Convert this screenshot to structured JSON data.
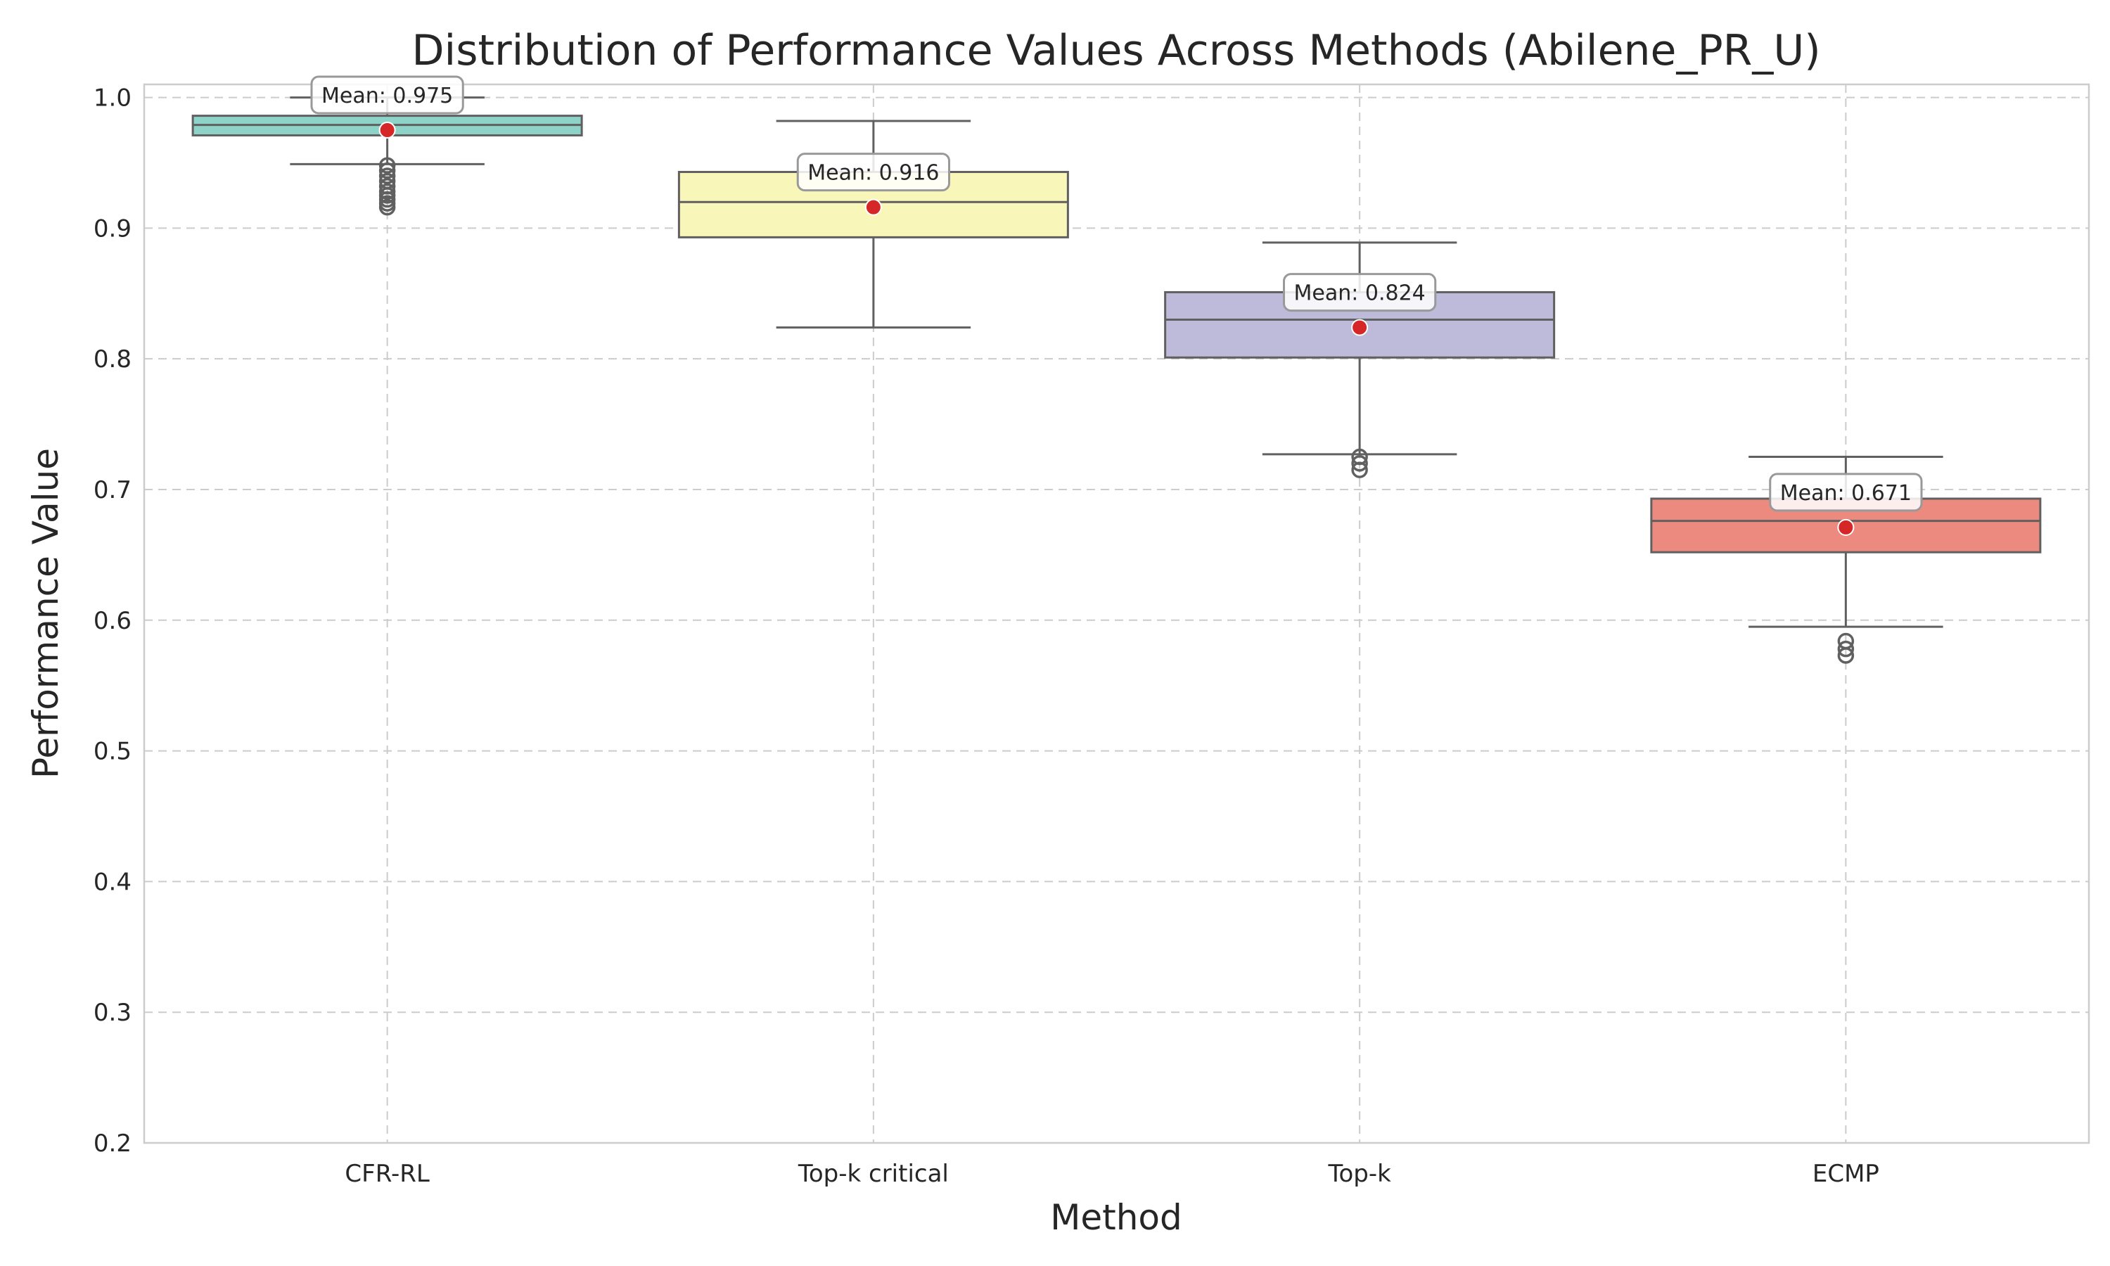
{
  "chart_data": {
    "type": "box",
    "title": "Distribution of Performance Values Across Methods (Abilene_PR_U)",
    "xlabel": "Method",
    "ylabel": "Performance Value",
    "ylim": [
      0.2,
      1.01
    ],
    "yticks": [
      0.2,
      0.3,
      0.4,
      0.5,
      0.6,
      0.7,
      0.8,
      0.9,
      1.0
    ],
    "ytick_labels": [
      "0.2",
      "0.3",
      "0.4",
      "0.5",
      "0.6",
      "0.7",
      "0.8",
      "0.9",
      "1.0"
    ],
    "grid": true,
    "categories": [
      "CFR-RL",
      "Top-k critical",
      "Top-k",
      "ECMP"
    ],
    "boxes": [
      {
        "category": "CFR-RL",
        "color": "#8dd3c7",
        "whisker_low": 0.949,
        "q1": 0.971,
        "median": 0.979,
        "q3": 0.986,
        "whisker_high": 1.0,
        "mean": 0.975,
        "mean_label": "Mean: 0.975",
        "outliers": [
          0.948,
          0.944,
          0.94,
          0.936,
          0.932,
          0.928,
          0.925,
          0.922,
          0.919,
          0.916
        ]
      },
      {
        "category": "Top-k critical",
        "color": "#f8f6b8",
        "whisker_low": 0.824,
        "q1": 0.893,
        "median": 0.92,
        "q3": 0.943,
        "whisker_high": 0.982,
        "mean": 0.916,
        "mean_label": "Mean: 0.916",
        "outliers": []
      },
      {
        "category": "Top-k",
        "color": "#bebada",
        "whisker_low": 0.727,
        "q1": 0.801,
        "median": 0.83,
        "q3": 0.851,
        "whisker_high": 0.889,
        "mean": 0.824,
        "mean_label": "Mean: 0.824",
        "outliers": [
          0.725,
          0.72,
          0.715
        ]
      },
      {
        "category": "ECMP",
        "color": "#ec8a80",
        "whisker_low": 0.595,
        "q1": 0.652,
        "median": 0.676,
        "q3": 0.693,
        "whisker_high": 0.725,
        "mean": 0.671,
        "mean_label": "Mean: 0.671",
        "outliers": [
          0.584,
          0.578,
          0.573
        ]
      }
    ],
    "colors": {
      "box_edge": "#606060",
      "grid": "#cccccc",
      "axes_edge": "#cccccc",
      "mean_marker": "#d62728",
      "annotation_edge": "#999999"
    }
  }
}
